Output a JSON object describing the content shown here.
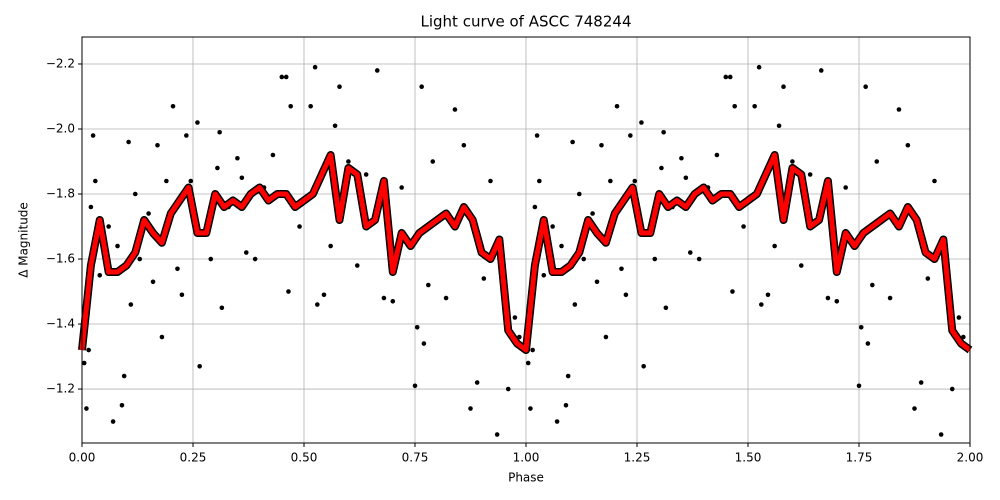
{
  "chart_data": {
    "type": "scatter",
    "title": "Light curve of ASCC 748244",
    "xlabel": "Phase",
    "ylabel": "Δ Magnitude",
    "xlim": [
      0,
      2
    ],
    "ylim": [
      -1.034,
      -2.283
    ],
    "xticks": [
      {
        "value": 0,
        "label": "0.00"
      },
      {
        "value": 0.25,
        "label": "0.25"
      },
      {
        "value": 0.5,
        "label": "0.50"
      },
      {
        "value": 0.75,
        "label": "0.75"
      },
      {
        "value": 1,
        "label": "1.00"
      },
      {
        "value": 1.25,
        "label": "1.25"
      },
      {
        "value": 1.5,
        "label": "1.50"
      },
      {
        "value": 1.75,
        "label": "1.75"
      },
      {
        "value": 2,
        "label": "2.00"
      }
    ],
    "yticks": [
      {
        "value": -2.2,
        "label": "−2.2"
      },
      {
        "value": -2.0,
        "label": "−2.0"
      },
      {
        "value": -1.8,
        "label": "−1.8"
      },
      {
        "value": -1.6,
        "label": "−1.6"
      },
      {
        "value": -1.4,
        "label": "−1.4"
      },
      {
        "value": -1.2,
        "label": "−1.2"
      }
    ],
    "grid": true,
    "points": {
      "color": "#000000",
      "x": [
        0.005,
        0.01,
        0.015,
        0.02,
        0.025,
        0.03,
        0.04,
        0.06,
        0.07,
        0.08,
        0.09,
        0.095,
        0.105,
        0.11,
        0.12,
        0.13,
        0.15,
        0.16,
        0.17,
        0.18,
        0.19,
        0.205,
        0.215,
        0.225,
        0.235,
        0.245,
        0.26,
        0.265,
        0.28,
        0.29,
        0.305,
        0.31,
        0.315,
        0.33,
        0.35,
        0.36,
        0.37,
        0.39,
        0.41,
        0.43,
        0.45,
        0.46,
        0.465,
        0.47,
        0.49,
        0.515,
        0.525,
        0.53,
        0.545,
        0.56,
        0.57,
        0.58,
        0.6,
        0.62,
        0.64,
        0.665,
        0.68,
        0.7,
        0.72,
        0.75,
        0.755,
        0.765,
        0.77,
        0.78,
        0.79,
        0.82,
        0.84,
        0.86,
        0.875,
        0.89,
        0.905,
        0.92,
        0.935,
        0.945,
        0.96,
        0.975,
        0.985,
        1.005,
        1.01,
        1.015,
        1.02,
        1.025,
        1.03,
        1.04,
        1.06,
        1.07,
        1.08,
        1.09,
        1.095,
        1.105,
        1.11,
        1.12,
        1.13,
        1.15,
        1.16,
        1.17,
        1.18,
        1.19,
        1.205,
        1.215,
        1.225,
        1.235,
        1.245,
        1.26,
        1.265,
        1.28,
        1.29,
        1.305,
        1.31,
        1.315,
        1.33,
        1.35,
        1.36,
        1.37,
        1.39,
        1.41,
        1.43,
        1.45,
        1.46,
        1.465,
        1.47,
        1.49,
        1.515,
        1.525,
        1.53,
        1.545,
        1.56,
        1.57,
        1.58,
        1.6,
        1.62,
        1.64,
        1.665,
        1.68,
        1.7,
        1.72,
        1.75,
        1.755,
        1.765,
        1.77,
        1.78,
        1.79,
        1.82,
        1.84,
        1.86,
        1.875,
        1.89,
        1.905,
        1.92,
        1.935,
        1.945,
        1.96,
        1.975,
        1.985
      ],
      "y": [
        -1.28,
        -1.14,
        -1.32,
        -1.76,
        -1.98,
        -1.84,
        -1.55,
        -1.7,
        -1.1,
        -1.64,
        -1.15,
        -1.24,
        -1.96,
        -1.46,
        -1.8,
        -1.6,
        -1.74,
        -1.53,
        -1.95,
        -1.36,
        -1.84,
        -2.07,
        -1.57,
        -1.49,
        -1.98,
        -1.84,
        -2.02,
        -1.27,
        -1.7,
        -1.6,
        -1.88,
        -1.99,
        -1.45,
        -1.76,
        -1.91,
        -1.85,
        -1.62,
        -1.6,
        -1.82,
        -1.92,
        -2.16,
        -2.16,
        -1.5,
        -2.07,
        -1.7,
        -2.07,
        -2.19,
        -1.46,
        -1.49,
        -1.64,
        -2.01,
        -2.13,
        -1.9,
        -1.58,
        -1.86,
        -2.18,
        -1.48,
        -1.47,
        -1.82,
        -1.21,
        -1.39,
        -2.13,
        -1.34,
        -1.52,
        -1.9,
        -1.48,
        -2.06,
        -1.95,
        -1.14,
        -1.22,
        -1.54,
        -1.84,
        -1.06,
        -1.58,
        -1.2,
        -1.42,
        -1.36,
        -1.28,
        -1.14,
        -1.32,
        -1.76,
        -1.98,
        -1.84,
        -1.55,
        -1.7,
        -1.1,
        -1.64,
        -1.15,
        -1.24,
        -1.96,
        -1.46,
        -1.8,
        -1.6,
        -1.74,
        -1.53,
        -1.95,
        -1.36,
        -1.84,
        -2.07,
        -1.57,
        -1.49,
        -1.98,
        -1.84,
        -2.02,
        -1.27,
        -1.7,
        -1.6,
        -1.88,
        -1.99,
        -1.45,
        -1.76,
        -1.91,
        -1.85,
        -1.62,
        -1.6,
        -1.82,
        -1.92,
        -2.16,
        -2.16,
        -1.5,
        -2.07,
        -1.7,
        -2.07,
        -2.19,
        -1.46,
        -1.49,
        -1.64,
        -2.01,
        -2.13,
        -1.9,
        -1.58,
        -1.86,
        -2.18,
        -1.48,
        -1.47,
        -1.82,
        -1.21,
        -1.39,
        -2.13,
        -1.34,
        -1.52,
        -1.9,
        -1.48,
        -2.06,
        -1.95,
        -1.14,
        -1.22,
        -1.54,
        -1.84,
        -1.06,
        -1.58,
        -1.2,
        -1.42,
        -1.36
      ]
    },
    "line": {
      "color": "#ff0000",
      "edge_color": "#000000",
      "x": [
        0,
        0.02,
        0.04,
        0.06,
        0.08,
        0.1,
        0.12,
        0.14,
        0.16,
        0.18,
        0.2,
        0.22,
        0.24,
        0.26,
        0.28,
        0.3,
        0.32,
        0.34,
        0.36,
        0.38,
        0.4,
        0.42,
        0.44,
        0.46,
        0.48,
        0.5,
        0.52,
        0.54,
        0.56,
        0.58,
        0.6,
        0.62,
        0.64,
        0.66,
        0.68,
        0.7,
        0.72,
        0.74,
        0.76,
        0.78,
        0.8,
        0.82,
        0.84,
        0.86,
        0.88,
        0.9,
        0.92,
        0.94,
        0.96,
        0.98,
        1,
        1.02,
        1.04,
        1.06,
        1.08,
        1.1,
        1.12,
        1.14,
        1.16,
        1.18,
        1.2,
        1.22,
        1.24,
        1.26,
        1.28,
        1.3,
        1.32,
        1.34,
        1.36,
        1.38,
        1.4,
        1.42,
        1.44,
        1.46,
        1.48,
        1.5,
        1.52,
        1.54,
        1.56,
        1.58,
        1.6,
        1.62,
        1.64,
        1.66,
        1.68,
        1.7,
        1.72,
        1.74,
        1.76,
        1.78,
        1.8,
        1.82,
        1.84,
        1.86,
        1.88,
        1.9,
        1.92,
        1.94,
        1.96,
        1.98,
        2
      ],
      "y": [
        -1.32,
        -1.58,
        -1.72,
        -1.56,
        -1.56,
        -1.58,
        -1.62,
        -1.72,
        -1.68,
        -1.65,
        -1.74,
        -1.78,
        -1.82,
        -1.68,
        -1.68,
        -1.8,
        -1.76,
        -1.78,
        -1.76,
        -1.8,
        -1.82,
        -1.78,
        -1.8,
        -1.8,
        -1.76,
        -1.78,
        -1.8,
        -1.86,
        -1.92,
        -1.72,
        -1.88,
        -1.86,
        -1.7,
        -1.72,
        -1.84,
        -1.56,
        -1.68,
        -1.64,
        -1.68,
        -1.7,
        -1.72,
        -1.74,
        -1.7,
        -1.76,
        -1.72,
        -1.62,
        -1.6,
        -1.66,
        -1.38,
        -1.34,
        -1.32,
        -1.58,
        -1.72,
        -1.56,
        -1.56,
        -1.58,
        -1.62,
        -1.72,
        -1.68,
        -1.65,
        -1.74,
        -1.78,
        -1.82,
        -1.68,
        -1.68,
        -1.8,
        -1.76,
        -1.78,
        -1.76,
        -1.8,
        -1.82,
        -1.78,
        -1.8,
        -1.8,
        -1.76,
        -1.78,
        -1.8,
        -1.86,
        -1.92,
        -1.72,
        -1.88,
        -1.86,
        -1.7,
        -1.72,
        -1.84,
        -1.56,
        -1.68,
        -1.64,
        -1.68,
        -1.7,
        -1.72,
        -1.74,
        -1.7,
        -1.76,
        -1.72,
        -1.62,
        -1.6,
        -1.66,
        -1.38,
        -1.34,
        -1.32
      ]
    }
  }
}
